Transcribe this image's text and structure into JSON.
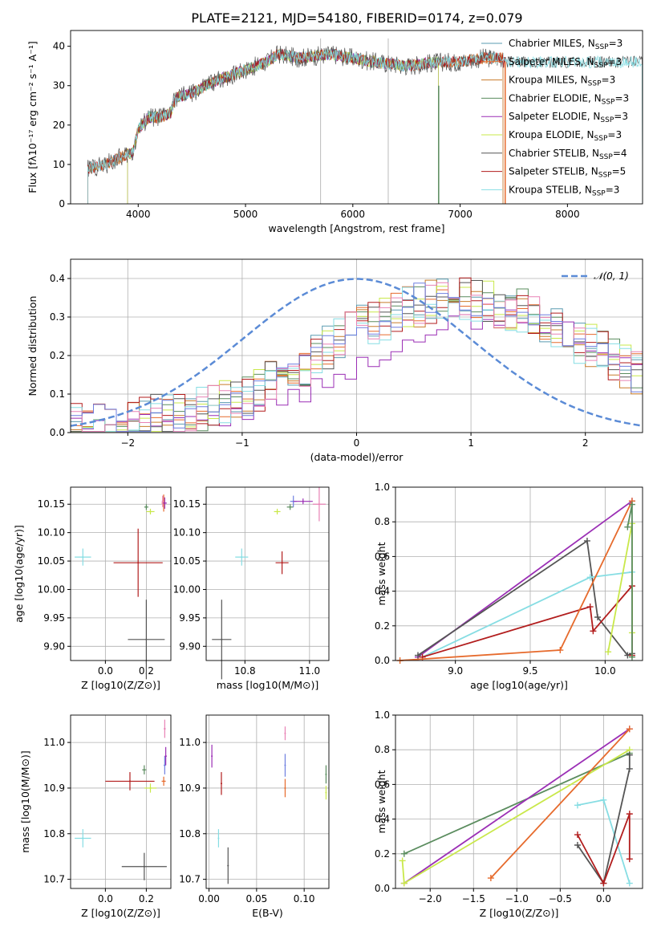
{
  "figure_title": "PLATE=2121, MJD=54180, FIBERID=0174, z=0.079",
  "colors": {
    "chab_miles": "#5a9bb0",
    "salp_miles": "#e66a2c",
    "krou_miles": "#c87c2a",
    "chab_elodie": "#5a8c5e",
    "salp_elodie": "#9b2fb5",
    "krou_elodie": "#c9e84a",
    "chab_stelib": "#555555",
    "salp_stelib": "#b21d1d",
    "krou_stelib": "#86dde3",
    "norm_dashed": "#5b8bd6",
    "pink": "#e882b5",
    "blue": "#6f7fe0",
    "gray_lines": "#b0b0b0"
  },
  "chart_data": [
    {
      "id": "spectrum",
      "type": "line",
      "title": "PLATE=2121, MJD=54180, FIBERID=0174, z=0.079",
      "xlabel": "wavelength [Angstrom, rest frame]",
      "ylabel": "Flux [fλ10⁻¹⁷ erg cm⁻² s⁻¹ A⁻¹]",
      "xlim": [
        3370,
        8700
      ],
      "ylim": [
        0,
        44
      ],
      "xticks": [
        "4000",
        "5000",
        "6000",
        "7000",
        "8000"
      ],
      "xtick_values": [
        4000,
        5000,
        6000,
        7000,
        8000
      ],
      "yticks": [
        "0",
        "10",
        "20",
        "30",
        "40"
      ],
      "ytick_values": [
        0,
        10,
        20,
        30,
        40
      ],
      "vlines": [
        5700,
        6330
      ],
      "continuum_x": [
        3530,
        3700,
        3850,
        3950,
        4000,
        4100,
        4200,
        4300,
        4350,
        4500,
        4700,
        4900,
        5000,
        5200,
        5300,
        5500,
        5800,
        6000,
        6200,
        6500,
        6800,
        7000,
        7200,
        7400
      ],
      "continuum_y": [
        9,
        10,
        12,
        13,
        19,
        22,
        22,
        23,
        27,
        28,
        31,
        33,
        34,
        36,
        38,
        37,
        38,
        37,
        36,
        35,
        36,
        36,
        37,
        37
      ],
      "legend": [
        {
          "name": "Chabrier MILES",
          "nssp": "3"
        },
        {
          "name": "Salpeter MILES",
          "nssp": "3"
        },
        {
          "name": "Kroupa MILES",
          "nssp": "3"
        },
        {
          "name": "Chabrier ELODIE",
          "nssp": "3"
        },
        {
          "name": "Salpeter ELODIE",
          "nssp": "3"
        },
        {
          "name": "Kroupa ELODIE",
          "nssp": "3"
        },
        {
          "name": "Chabrier STELIB",
          "nssp": "4"
        },
        {
          "name": "Salpeter STELIB",
          "nssp": "5"
        },
        {
          "name": "Kroupa STELIB",
          "nssp": "3"
        }
      ],
      "legend_placement": "top-right",
      "grid": false
    },
    {
      "id": "residuals",
      "type": "line",
      "xlabel": "(data-model)/error",
      "ylabel": "Normed distribution",
      "xlim": [
        -2.5,
        2.5
      ],
      "ylim": [
        0,
        0.45
      ],
      "xticks": [
        "−2",
        "−1",
        "0",
        "1",
        "2"
      ],
      "xtick_values": [
        -2,
        -1,
        0,
        1,
        2
      ],
      "yticks": [
        "0.0",
        "0.1",
        "0.2",
        "0.3",
        "0.4"
      ],
      "ytick_values": [
        0,
        0.1,
        0.2,
        0.3,
        0.4
      ],
      "legend": "𝒩(0, 1)",
      "legend_placement": "top-right",
      "grid": true,
      "envelope_x": [
        -2.5,
        -2.0,
        -1.5,
        -1.0,
        -0.5,
        0.0,
        0.5,
        1.0,
        1.5,
        2.0,
        2.5
      ],
      "envelope_y": [
        0.02,
        0.03,
        0.05,
        0.09,
        0.17,
        0.27,
        0.33,
        0.35,
        0.31,
        0.23,
        0.15
      ]
    },
    {
      "id": "age_vs_Z",
      "type": "scatter",
      "xlabel": "Z [log10(Z/Z⊙)]",
      "ylabel": "age  [log10(age/yr)]",
      "xlim": [
        -0.17,
        0.32
      ],
      "ylim": [
        9.875,
        10.18
      ],
      "xticks": [
        "0.0",
        "0.2"
      ],
      "xtick_values": [
        0,
        0.2
      ],
      "yticks": [
        "9.90",
        "9.95",
        "10.00",
        "10.05",
        "10.10",
        "10.15"
      ],
      "ytick_values": [
        9.9,
        9.95,
        10.0,
        10.05,
        10.1,
        10.15
      ],
      "grid": true,
      "points": [
        {
          "color": "krou_stelib",
          "x": -0.11,
          "y": 10.057,
          "ex": 0.04,
          "ey": 0.015
        },
        {
          "color": "salp_stelib",
          "x": 0.16,
          "y": 10.047,
          "ex": 0.12,
          "ey": 0.06
        },
        {
          "color": "chab_stelib",
          "x": 0.2,
          "y": 9.912,
          "ex": 0.09,
          "ey": 0.07
        },
        {
          "color": "chab_elodie",
          "x": 0.2,
          "y": 10.145,
          "ex": 0.01,
          "ey": 0.005
        },
        {
          "color": "krou_elodie",
          "x": 0.22,
          "y": 10.137,
          "ex": 0.02,
          "ey": 0.005
        },
        {
          "color": "salp_miles",
          "x": 0.285,
          "y": 10.152,
          "ex": 0.01,
          "ey": 0.015
        },
        {
          "color": "salp_elodie",
          "x": 0.29,
          "y": 10.152,
          "ex": 0.01,
          "ey": 0.01
        },
        {
          "color": "pink",
          "x": 0.28,
          "y": 10.155,
          "ex": 0.005,
          "ey": 0.01
        }
      ]
    },
    {
      "id": "age_vs_mass",
      "type": "scatter",
      "xlabel": "mass [log10(M/M⊙)]",
      "xlim": [
        10.68,
        11.06
      ],
      "ylim": [
        9.875,
        10.18
      ],
      "xticks": [
        "10.8",
        "11.0"
      ],
      "xtick_values": [
        10.8,
        11.0
      ],
      "yticks": [
        "9.90",
        "9.95",
        "10.00",
        "10.05",
        "10.10",
        "10.15"
      ],
      "ytick_values": [
        9.9,
        9.95,
        10.0,
        10.05,
        10.1,
        10.15
      ],
      "grid": true,
      "points": [
        {
          "color": "krou_stelib",
          "x": 10.79,
          "y": 10.057,
          "ex": 0.02,
          "ey": 0.015
        },
        {
          "color": "salp_stelib",
          "x": 10.915,
          "y": 10.047,
          "ex": 0.02,
          "ey": 0.02
        },
        {
          "color": "chab_stelib",
          "x": 10.728,
          "y": 9.912,
          "ex": 0.03,
          "ey": 0.07
        },
        {
          "color": "krou_elodie",
          "x": 10.9,
          "y": 10.137,
          "ex": 0.01,
          "ey": 0.005
        },
        {
          "color": "chab_elodie",
          "x": 10.94,
          "y": 10.145,
          "ex": 0.01,
          "ey": 0.005
        },
        {
          "color": "blue",
          "x": 10.95,
          "y": 10.155,
          "ex": 0.01,
          "ey": 0.01
        },
        {
          "color": "salp_elodie",
          "x": 10.98,
          "y": 10.155,
          "ex": 0.03,
          "ey": 0.005
        },
        {
          "color": "pink",
          "x": 11.03,
          "y": 10.15,
          "ex": 0.02,
          "ey": 0.03
        }
      ]
    },
    {
      "id": "mass_weight_vs_age",
      "type": "line",
      "xlabel": "age  [log10(age/yr)]",
      "ylabel": "mass weight",
      "xlim": [
        8.6,
        10.25
      ],
      "ylim": [
        0,
        1
      ],
      "xticks": [
        "9.0",
        "9.5",
        "10.0"
      ],
      "xtick_values": [
        9.0,
        9.5,
        10.0
      ],
      "yticks": [
        "0.0",
        "0.2",
        "0.4",
        "0.6",
        "0.8",
        "1.0"
      ],
      "ytick_values": [
        0,
        0.2,
        0.4,
        0.6,
        0.8,
        1.0
      ],
      "grid": true,
      "series": [
        {
          "color": "salp_elodie",
          "x": [
            8.75,
            10.18
          ],
          "y": [
            0.02,
            0.92
          ]
        },
        {
          "color": "chab_stelib",
          "x": [
            8.75,
            9.88,
            9.95,
            10.15,
            10.18
          ],
          "y": [
            0.03,
            0.69,
            0.25,
            0.03,
            0.04
          ]
        },
        {
          "color": "krou_stelib",
          "x": [
            8.78,
            9.9,
            10.18
          ],
          "y": [
            0.02,
            0.48,
            0.51
          ]
        },
        {
          "color": "salp_stelib",
          "x": [
            8.78,
            9.9,
            9.92,
            10.18,
            10.18
          ],
          "y": [
            0.02,
            0.31,
            0.17,
            0.43,
            0.03
          ]
        },
        {
          "color": "salp_miles",
          "x": [
            8.63,
            9.7,
            10.18
          ],
          "y": [
            0.0,
            0.06,
            0.92
          ]
        },
        {
          "color": "krou_elodie",
          "x": [
            10.02,
            10.18,
            10.18
          ],
          "y": [
            0.05,
            0.79,
            0.16
          ]
        },
        {
          "color": "chab_elodie",
          "x": [
            10.15,
            10.18,
            10.18
          ],
          "y": [
            0.77,
            0.9,
            0.02
          ]
        }
      ]
    },
    {
      "id": "mass_vs_Z",
      "type": "scatter",
      "xlabel": "Z [log10(Z/Z⊙)]",
      "ylabel": "mass [log10(M/M⊙)]",
      "xlim": [
        -0.17,
        0.32
      ],
      "ylim": [
        10.68,
        11.06
      ],
      "xticks": [
        "0.0",
        "0.2"
      ],
      "xtick_values": [
        0,
        0.2
      ],
      "yticks": [
        "10.7",
        "10.8",
        "10.9",
        "11.0"
      ],
      "ytick_values": [
        10.7,
        10.8,
        10.9,
        11.0
      ],
      "grid": true,
      "points": [
        {
          "color": "krou_stelib",
          "x": -0.11,
          "y": 10.79,
          "ex": 0.04,
          "ey": 0.02
        },
        {
          "color": "salp_stelib",
          "x": 0.12,
          "y": 10.915,
          "ex": 0.12,
          "ey": 0.02
        },
        {
          "color": "chab_stelib",
          "x": 0.19,
          "y": 10.728,
          "ex": 0.11,
          "ey": 0.03
        },
        {
          "color": "krou_elodie",
          "x": 0.22,
          "y": 10.9,
          "ex": 0.03,
          "ey": 0.01
        },
        {
          "color": "chab_elodie",
          "x": 0.19,
          "y": 10.94,
          "ex": 0.01,
          "ey": 0.01
        },
        {
          "color": "salp_miles",
          "x": 0.285,
          "y": 10.915,
          "ex": 0.01,
          "ey": 0.01
        },
        {
          "color": "blue",
          "x": 0.29,
          "y": 10.95,
          "ex": 0.005,
          "ey": 0.02
        },
        {
          "color": "salp_elodie",
          "x": 0.295,
          "y": 10.97,
          "ex": 0.005,
          "ey": 0.02
        },
        {
          "color": "pink",
          "x": 0.29,
          "y": 11.03,
          "ex": 0.005,
          "ey": 0.02
        }
      ]
    },
    {
      "id": "mass_vs_ebv",
      "type": "scatter",
      "xlabel": "E(B-V)",
      "xlim": [
        -0.003,
        0.126
      ],
      "ylim": [
        10.68,
        11.06
      ],
      "xticks": [
        "0.00",
        "0.05",
        "0.10"
      ],
      "xtick_values": [
        0,
        0.05,
        0.1
      ],
      "yticks": [
        "10.7",
        "10.8",
        "10.9",
        "11.0"
      ],
      "ytick_values": [
        10.7,
        10.8,
        10.9,
        11.0
      ],
      "grid": true,
      "points": [
        {
          "color": "salp_elodie",
          "x": 0.003,
          "y": 10.97,
          "ex": 0,
          "ey": 0.025
        },
        {
          "color": "krou_stelib",
          "x": 0.01,
          "y": 10.79,
          "ex": 0,
          "ey": 0.02
        },
        {
          "color": "chab_stelib",
          "x": 0.02,
          "y": 10.73,
          "ex": 0,
          "ey": 0.04
        },
        {
          "color": "salp_stelib",
          "x": 0.013,
          "y": 10.91,
          "ex": 0,
          "ey": 0.025
        },
        {
          "color": "pink",
          "x": 0.08,
          "y": 11.02,
          "ex": 0,
          "ey": 0.015
        },
        {
          "color": "blue",
          "x": 0.08,
          "y": 10.95,
          "ex": 0,
          "ey": 0.025
        },
        {
          "color": "salp_miles",
          "x": 0.08,
          "y": 10.9,
          "ex": 0,
          "ey": 0.02
        },
        {
          "color": "chab_elodie",
          "x": 0.123,
          "y": 10.93,
          "ex": 0,
          "ey": 0.02
        },
        {
          "color": "krou_elodie",
          "x": 0.123,
          "y": 10.89,
          "ex": 0,
          "ey": 0.015
        }
      ]
    },
    {
      "id": "mass_weight_vs_Z",
      "type": "line",
      "xlabel": "Z [log10(Z/Z⊙)]",
      "ylabel": "mass weight",
      "xlim": [
        -2.4,
        0.45
      ],
      "ylim": [
        0,
        1
      ],
      "xticks": [
        "−2.0",
        "−1.5",
        "−1.0",
        "−0.5",
        "0.0"
      ],
      "xtick_values": [
        -2.0,
        -1.5,
        -1.0,
        -0.5,
        0.0
      ],
      "yticks": [
        "0.0",
        "0.2",
        "0.4",
        "0.6",
        "0.8",
        "1.0"
      ],
      "ytick_values": [
        0,
        0.2,
        0.4,
        0.6,
        0.8,
        1.0
      ],
      "grid": true,
      "series": [
        {
          "color": "chab_elodie",
          "x": [
            -2.3,
            0.3
          ],
          "y": [
            0.2,
            0.78
          ]
        },
        {
          "color": "salp_elodie",
          "x": [
            -2.3,
            0.3
          ],
          "y": [
            0.03,
            0.92
          ]
        },
        {
          "color": "krou_elodie",
          "x": [
            -2.32,
            -2.3,
            0.3
          ],
          "y": [
            0.16,
            0.03,
            0.8
          ]
        },
        {
          "color": "salp_miles",
          "x": [
            -1.3,
            0.3
          ],
          "y": [
            0.06,
            0.92
          ]
        },
        {
          "color": "krou_stelib",
          "x": [
            -0.3,
            -0.0,
            0.3
          ],
          "y": [
            0.48,
            0.51,
            0.03
          ]
        },
        {
          "color": "chab_stelib",
          "x": [
            -0.3,
            0.0,
            0.3,
            0.3
          ],
          "y": [
            0.25,
            0.03,
            0.69,
            0.77
          ]
        },
        {
          "color": "salp_stelib",
          "x": [
            -0.3,
            0.0,
            0.3,
            0.3
          ],
          "y": [
            0.31,
            0.03,
            0.43,
            0.17
          ]
        }
      ]
    }
  ]
}
